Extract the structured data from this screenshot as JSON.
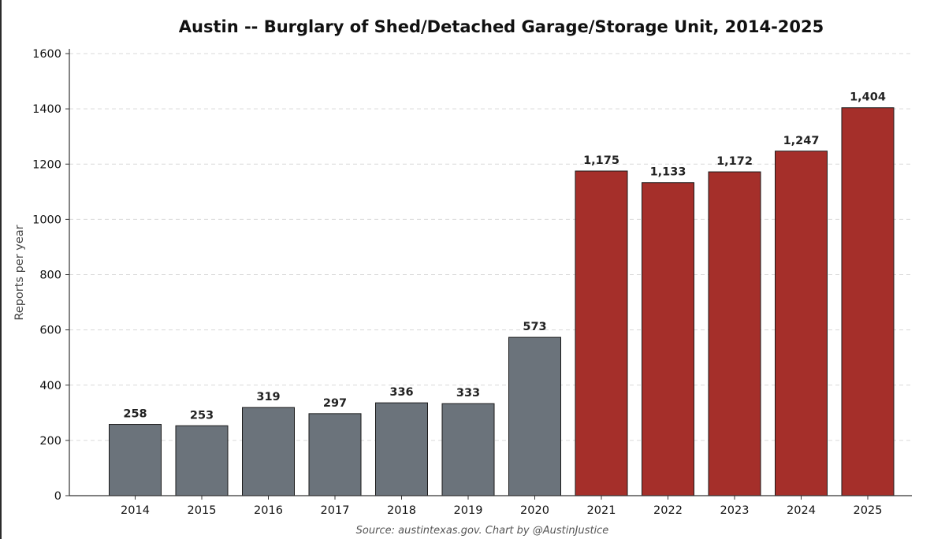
{
  "chart_data": {
    "type": "bar",
    "title": "Austin -- Burglary of Shed/Detached Garage/Storage Unit, 2014-2025",
    "xlabel": "",
    "ylabel": "Reports per year",
    "categories": [
      "2014",
      "2015",
      "2016",
      "2017",
      "2018",
      "2019",
      "2020",
      "2021",
      "2022",
      "2023",
      "2024",
      "2025"
    ],
    "values": [
      258,
      253,
      319,
      297,
      336,
      333,
      573,
      1175,
      1133,
      1172,
      1247,
      1404
    ],
    "value_labels": [
      "258",
      "253",
      "319",
      "297",
      "336",
      "333",
      "573",
      "1,175",
      "1,133",
      "1,172",
      "1,247",
      "1,404"
    ],
    "bar_colors": [
      "#6b737b",
      "#6b737b",
      "#6b737b",
      "#6b737b",
      "#6b737b",
      "#6b737b",
      "#6b737b",
      "#a52f2a",
      "#a52f2a",
      "#a52f2a",
      "#a52f2a",
      "#a52f2a"
    ],
    "ylim": [
      0,
      1600
    ],
    "yticks": [
      0,
      200,
      400,
      600,
      800,
      1000,
      1200,
      1400,
      1600
    ],
    "grid": "horizontal dashed",
    "source": "Source: austintexas.gov.  Chart by @AustinJustice"
  }
}
